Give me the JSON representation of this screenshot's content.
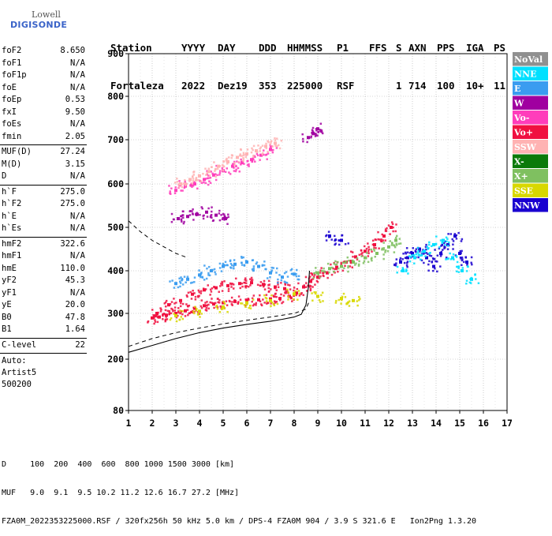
{
  "logo": {
    "brand": "Lowell",
    "name": "DIGISONDE"
  },
  "header": {
    "row1": [
      "Station",
      "YYYY",
      "DAY",
      "DDD",
      "HHMMSS",
      "P1",
      "FFS",
      "S",
      "AXN",
      "PPS",
      "IGA",
      "PS"
    ],
    "row2": [
      "Fortaleza",
      "2022",
      "Dez19",
      "353",
      "225000",
      "RSF",
      "",
      "1",
      "714",
      "100",
      "10+",
      "11"
    ]
  },
  "params": [
    [
      {
        "label": "foF2",
        "value": "8.650"
      },
      {
        "label": "foF1",
        "value": "N/A"
      },
      {
        "label": "foF1p",
        "value": "N/A"
      },
      {
        "label": "foE",
        "value": "N/A"
      },
      {
        "label": "foEp",
        "value": "0.53"
      },
      {
        "label": "fxI",
        "value": "9.50"
      },
      {
        "label": "foEs",
        "value": "N/A"
      },
      {
        "label": "fmin",
        "value": "2.05"
      }
    ],
    [
      {
        "label": "MUF(D)",
        "value": "27.24"
      },
      {
        "label": "M(D)",
        "value": "3.15"
      },
      {
        "label": "D",
        "value": "N/A"
      }
    ],
    [
      {
        "label": "h`F",
        "value": "275.0"
      },
      {
        "label": "h`F2",
        "value": "275.0"
      },
      {
        "label": "h`E",
        "value": "N/A"
      },
      {
        "label": "h`Es",
        "value": "N/A"
      }
    ],
    [
      {
        "label": "hmF2",
        "value": "322.6"
      },
      {
        "label": "hmF1",
        "value": "N/A"
      },
      {
        "label": "hmE",
        "value": "110.0"
      },
      {
        "label": "yF2",
        "value": "45.3"
      },
      {
        "label": "yF1",
        "value": "N/A"
      },
      {
        "label": "yE",
        "value": "20.0"
      },
      {
        "label": "B0",
        "value": "47.8"
      },
      {
        "label": "B1",
        "value": "1.64"
      }
    ],
    [
      {
        "label": "C-level",
        "value": "22"
      }
    ]
  ],
  "params_footer": {
    "line1": "Auto:",
    "line2": "Artist5",
    "line3": "500200"
  },
  "chart_data": {
    "type": "scatter",
    "title": "",
    "xlabel": "",
    "ylabel": "",
    "xlim": [
      1,
      17
    ],
    "ylim": [
      80,
      900
    ],
    "y_scale": "nonlinear",
    "x_ticks": [
      1,
      2,
      3,
      4,
      5,
      6,
      7,
      8,
      9,
      10,
      11,
      12,
      13,
      14,
      15,
      16,
      17
    ],
    "y_ticks": [
      80,
      200,
      300,
      400,
      500,
      600,
      700,
      800,
      900
    ],
    "grid": true,
    "legend_position": "right",
    "legend": [
      {
        "name": "NoVal",
        "color": "#909090"
      },
      {
        "name": "NNE",
        "color": "#00e0ff"
      },
      {
        "name": "E",
        "color": "#3a9cf0"
      },
      {
        "name": "W",
        "color": "#a000a0"
      },
      {
        "name": "Vo-",
        "color": "#ff3dbb"
      },
      {
        "name": "Vo+",
        "color": "#f01040"
      },
      {
        "name": "SSW",
        "color": "#ffb3b3"
      },
      {
        "name": "X-",
        "color": "#0a7a0a"
      },
      {
        "name": "X+",
        "color": "#7fc060"
      },
      {
        "name": "SSE",
        "color": "#d8d800"
      },
      {
        "name": "NNW",
        "color": "#1a00d0"
      }
    ],
    "series": [
      {
        "color": "#f01040",
        "points": [
          [
            2.0,
            290
          ],
          [
            2.3,
            292
          ],
          [
            2.6,
            296
          ],
          [
            3.0,
            300
          ],
          [
            3.4,
            306
          ],
          [
            3.8,
            312
          ],
          [
            4.2,
            318
          ],
          [
            4.6,
            322
          ],
          [
            5.0,
            325
          ],
          [
            5.5,
            328
          ],
          [
            6.0,
            330
          ],
          [
            6.5,
            332
          ],
          [
            7.0,
            334
          ],
          [
            7.4,
            335
          ],
          [
            7.8,
            340
          ],
          [
            8.1,
            348
          ],
          [
            8.4,
            362
          ],
          [
            8.7,
            375
          ],
          [
            9.0,
            385
          ],
          [
            9.4,
            395
          ],
          [
            9.8,
            408
          ],
          [
            10.2,
            420
          ],
          [
            10.6,
            432
          ],
          [
            11.0,
            445
          ],
          [
            11.4,
            460
          ],
          [
            11.8,
            480
          ],
          [
            12.1,
            500
          ]
        ]
      },
      {
        "color": "#f01040",
        "points": [
          [
            2.2,
            300
          ],
          [
            2.7,
            320
          ],
          [
            3.2,
            330
          ],
          [
            3.7,
            345
          ],
          [
            4.2,
            355
          ],
          [
            4.7,
            360
          ],
          [
            5.2,
            365
          ],
          [
            5.7,
            370
          ],
          [
            6.2,
            372
          ],
          [
            6.7,
            368
          ],
          [
            7.2,
            362
          ],
          [
            7.6,
            358
          ]
        ]
      },
      {
        "color": "#ff3dbb",
        "points": [
          [
            3.0,
            585
          ],
          [
            3.4,
            595
          ],
          [
            3.8,
            600
          ],
          [
            4.2,
            610
          ],
          [
            4.6,
            620
          ],
          [
            5.0,
            630
          ],
          [
            5.4,
            640
          ],
          [
            5.8,
            648
          ],
          [
            6.2,
            655
          ],
          [
            6.6,
            665
          ],
          [
            7.0,
            678
          ]
        ]
      },
      {
        "color": "#ffb3b3",
        "points": [
          [
            3.2,
            600
          ],
          [
            3.6,
            610
          ],
          [
            4.0,
            618
          ],
          [
            4.4,
            628
          ],
          [
            4.8,
            640
          ],
          [
            5.2,
            650
          ],
          [
            5.6,
            660
          ],
          [
            6.0,
            668
          ],
          [
            6.4,
            675
          ],
          [
            6.8,
            685
          ],
          [
            7.2,
            692
          ]
        ]
      },
      {
        "color": "#a000a0",
        "points": [
          [
            3.1,
            520
          ],
          [
            3.5,
            525
          ],
          [
            3.9,
            530
          ],
          [
            4.3,
            535
          ],
          [
            4.7,
            528
          ],
          [
            5.1,
            520
          ],
          [
            8.6,
            705
          ],
          [
            8.8,
            715
          ],
          [
            9.0,
            725
          ]
        ]
      },
      {
        "color": "#3a9cf0",
        "points": [
          [
            3.0,
            370
          ],
          [
            3.5,
            380
          ],
          [
            4.0,
            390
          ],
          [
            4.5,
            400
          ],
          [
            5.0,
            410
          ],
          [
            5.5,
            415
          ],
          [
            6.0,
            420
          ],
          [
            6.5,
            410
          ],
          [
            7.0,
            395
          ],
          [
            7.5,
            385
          ],
          [
            8.0,
            392
          ]
        ]
      },
      {
        "color": "#1a00d0",
        "points": [
          [
            12.5,
            420
          ],
          [
            12.8,
            430
          ],
          [
            13.0,
            440
          ],
          [
            13.3,
            450
          ],
          [
            13.6,
            430
          ],
          [
            13.9,
            410
          ],
          [
            14.2,
            440
          ],
          [
            14.5,
            460
          ],
          [
            14.8,
            480
          ],
          [
            15.0,
            440
          ],
          [
            15.3,
            420
          ],
          [
            9.5,
            480
          ],
          [
            10.0,
            470
          ]
        ]
      },
      {
        "color": "#00e0ff",
        "points": [
          [
            12.6,
            400
          ],
          [
            13.1,
            430
          ],
          [
            13.5,
            445
          ],
          [
            13.9,
            460
          ],
          [
            14.3,
            470
          ],
          [
            14.7,
            430
          ],
          [
            15.1,
            400
          ],
          [
            15.5,
            380
          ]
        ]
      },
      {
        "color": "#d8d800",
        "points": [
          [
            3.0,
            295
          ],
          [
            4.0,
            305
          ],
          [
            5.0,
            315
          ],
          [
            6.0,
            325
          ],
          [
            7.0,
            330
          ],
          [
            8.0,
            345
          ],
          [
            9.0,
            340
          ],
          [
            10.0,
            335
          ],
          [
            10.5,
            330
          ]
        ]
      },
      {
        "color": "#7fc060",
        "points": [
          [
            9.0,
            395
          ],
          [
            9.5,
            405
          ],
          [
            10.0,
            410
          ],
          [
            10.5,
            420
          ],
          [
            11.0,
            430
          ],
          [
            11.5,
            440
          ],
          [
            12.0,
            455
          ],
          [
            12.3,
            470
          ]
        ]
      }
    ],
    "profile_line": [
      [
        1,
        215
      ],
      [
        2,
        230
      ],
      [
        3,
        245
      ],
      [
        4,
        258
      ],
      [
        5,
        268
      ],
      [
        6,
        276
      ],
      [
        7,
        283
      ],
      [
        7.5,
        287
      ],
      [
        8,
        292
      ],
      [
        8.3,
        298
      ],
      [
        8.5,
        320
      ],
      [
        8.6,
        360
      ],
      [
        8.65,
        400
      ]
    ],
    "dashed_line": [
      [
        1,
        228
      ],
      [
        2,
        245
      ],
      [
        3,
        258
      ],
      [
        4,
        268
      ],
      [
        5,
        277
      ],
      [
        6,
        285
      ],
      [
        7,
        292
      ],
      [
        8,
        300
      ],
      [
        8.5,
        310
      ],
      [
        8.65,
        330
      ]
    ],
    "dashed_top": [
      [
        1,
        515
      ],
      [
        1.5,
        490
      ],
      [
        2,
        470
      ],
      [
        2.5,
        455
      ],
      [
        3,
        440
      ],
      [
        3.5,
        430
      ]
    ]
  },
  "bottom": {
    "d_label": "D",
    "d_values": "100  200  400  600  800 1000 1500 3000 [km]",
    "muf_label": "MUF",
    "muf_values": "9.0  9.1  9.5 10.2 11.2 12.6 16.7 27.2 [MHz]",
    "footer": "FZA0M_2022353225000.RSF / 320fx256h 50 kHz 5.0 km / DPS-4 FZA0M 904 / 3.9 S 321.6 E   Ion2Png 1.3.20"
  }
}
